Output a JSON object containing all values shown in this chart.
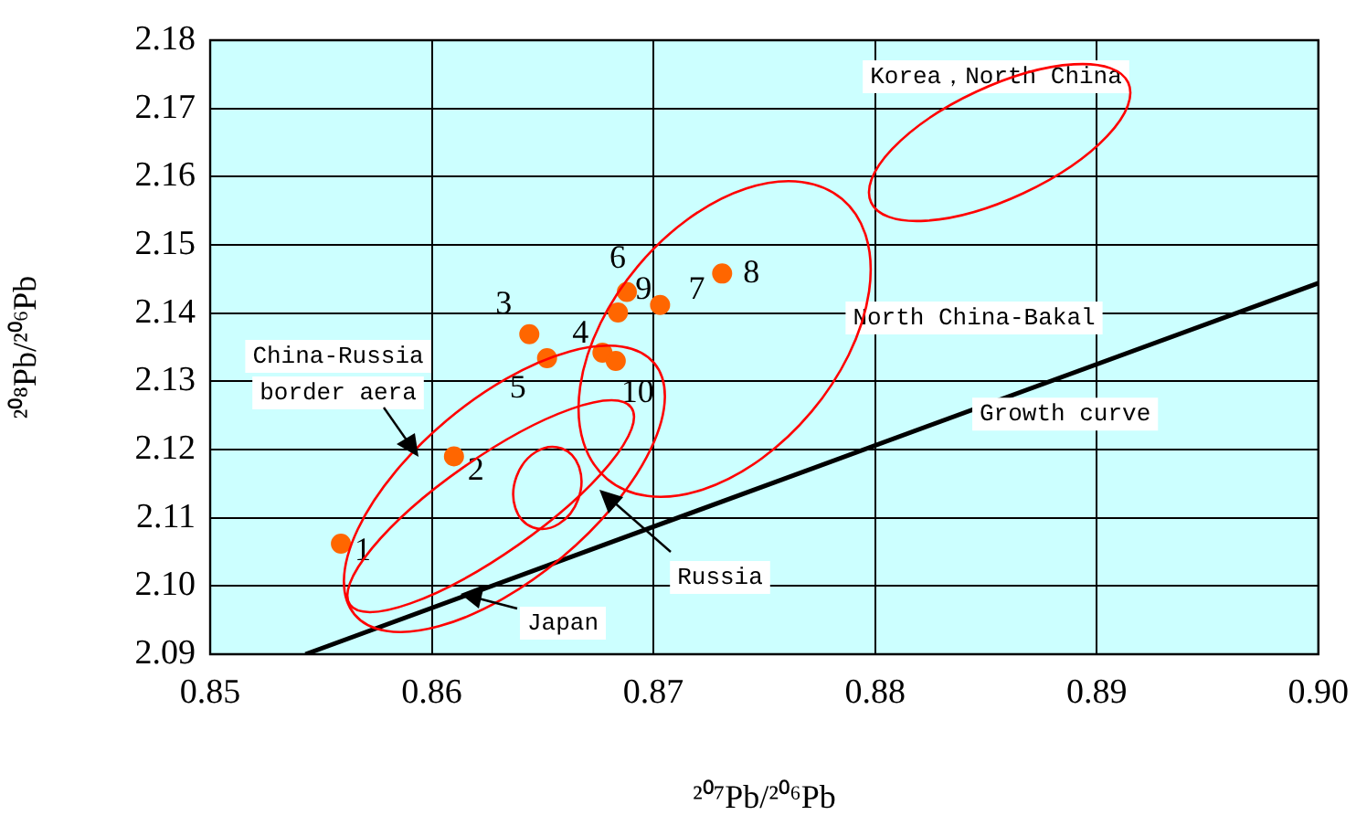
{
  "chart_data": {
    "type": "scatter",
    "xlabel": "²⁰⁷Pb/²⁰⁶Pb",
    "ylabel": "²⁰⁸Pb/²⁰⁶Pb",
    "xlim": [
      0.85,
      0.9
    ],
    "xticks": [
      0.85,
      0.86,
      0.87,
      0.88,
      0.89,
      {
        "value": 0.9,
        "label": "0.90"
      }
    ],
    "ylim": [
      2.09,
      2.18
    ],
    "yticks": [
      2.09,
      {
        "value": 2.1,
        "label": "2.10"
      },
      2.11,
      2.12,
      2.13,
      2.14,
      2.15,
      2.16,
      2.17,
      2.18
    ],
    "grid": true,
    "legend": false,
    "series": [
      {
        "color": "#ff6600",
        "x": [
          0.8559,
          0.861,
          0.8644,
          0.8677,
          0.8652,
          0.8688,
          0.8703,
          0.8731,
          0.8684,
          0.8683
        ],
        "values": [
          2.1062,
          2.119,
          2.1369,
          2.1342,
          2.1334,
          2.1431,
          2.1412,
          2.1458,
          2.1401,
          2.133
        ]
      },
      {
        "type": "line",
        "name": "Growth curve",
        "color": "#000000",
        "x": [
          0.8543,
          0.9
        ],
        "values": [
          2.09,
          2.1444
        ]
      }
    ],
    "annotations": [
      "Korea，North China",
      "North China-Bakal",
      "China-Russia\nborder aera",
      "Russia",
      "Japan",
      {
        "text": "1",
        "x": 0.8559,
        "y": 2.1062
      },
      {
        "text": "2",
        "x": 0.861,
        "y": 2.119
      },
      {
        "text": "3",
        "x": 0.8644,
        "y": 2.1369
      },
      {
        "text": "4",
        "x": 0.8677,
        "y": 2.1342
      },
      {
        "text": "5",
        "x": 0.8652,
        "y": 2.1334
      },
      {
        "text": "6",
        "x": 0.8688,
        "y": 2.1431
      },
      {
        "text": "7",
        "x": 0.8703,
        "y": 2.1412
      },
      {
        "text": "8",
        "x": 0.8731,
        "y": 2.1458
      },
      {
        "text": "9",
        "x": 0.8684,
        "y": 2.1401
      },
      {
        "text": "10",
        "x": 0.8683,
        "y": 2.133
      }
    ]
  }
}
